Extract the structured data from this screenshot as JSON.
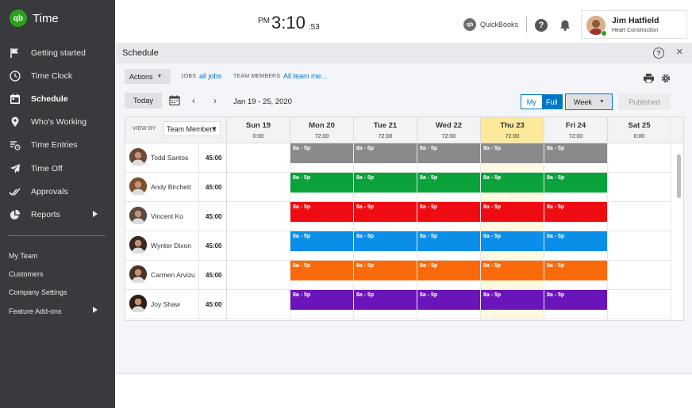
{
  "app": {
    "logo": "qb",
    "name": "Time"
  },
  "nav": {
    "items": [
      {
        "label": "Getting started",
        "icon": "flag-icon"
      },
      {
        "label": "Time Clock",
        "icon": "clock-icon"
      },
      {
        "label": "Schedule",
        "icon": "calendar-icon",
        "active": true
      },
      {
        "label": "Who's Working",
        "icon": "location-pin-icon"
      },
      {
        "label": "Time Entries",
        "icon": "time-entries-icon"
      },
      {
        "label": "Time Off",
        "icon": "airplane-icon"
      },
      {
        "label": "Approvals",
        "icon": "approvals-check-icon"
      },
      {
        "label": "Reports",
        "icon": "pie-chart-icon",
        "submenu": true
      }
    ],
    "sub_items": [
      {
        "label": "My Team"
      },
      {
        "label": "Customers"
      },
      {
        "label": "Company Settings"
      },
      {
        "label": "Feature Add-ons",
        "submenu": true
      }
    ]
  },
  "header": {
    "clock": {
      "ampm": "PM",
      "time": "3:10",
      "seconds": ":53"
    },
    "quickbooks_label": "QuickBooks",
    "quickbooks_logo": "qb",
    "help_label": "?",
    "user": {
      "name": "Jim Hatfield",
      "company": "Heart Construction"
    }
  },
  "schedule": {
    "title": "Schedule",
    "help_label": "?",
    "close_label": "×",
    "actions_label": "Actions",
    "jobs_label": "JOBS",
    "jobs_value": "all jobs",
    "team_label": "TEAM MEMBERS",
    "team_value": "All team me...",
    "today_label": "Today",
    "prev_label": "‹",
    "next_label": "›",
    "date_range": "Jan 19 - 25, 2020",
    "my_label": "My",
    "full_label": "Full",
    "week_label": "Week",
    "published_label": "Published",
    "view_by_label": "VIEW BY",
    "view_by_value": "Team Members",
    "days": [
      {
        "name": "Sun 19",
        "hours": "0:00",
        "today": false
      },
      {
        "name": "Mon 20",
        "hours": "72:00",
        "today": false
      },
      {
        "name": "Tue 21",
        "hours": "72:00",
        "today": false
      },
      {
        "name": "Wed 22",
        "hours": "72:00",
        "today": false
      },
      {
        "name": "Thu 23",
        "hours": "72:00",
        "today": true
      },
      {
        "name": "Fri 24",
        "hours": "72:00",
        "today": false
      },
      {
        "name": "Sat 25",
        "hours": "0:00",
        "today": false
      }
    ],
    "employees": [
      {
        "name": "Todd Santos",
        "hours": "45:00",
        "color": "#8a8a8a",
        "avatar": "#6b4a3a"
      },
      {
        "name": "Andy Birchett",
        "hours": "45:00",
        "color": "#0aa33b",
        "avatar": "#7a5230"
      },
      {
        "name": "Vincent Ko",
        "hours": "45:00",
        "color": "#ee0c12",
        "avatar": "#5a4a40"
      },
      {
        "name": "Wynter Dixon",
        "hours": "45:00",
        "color": "#0a8ee8",
        "avatar": "#3a2a22"
      },
      {
        "name": "Carmen Arvizu",
        "hours": "45:00",
        "color": "#fb6a0a",
        "avatar": "#4a3326"
      },
      {
        "name": "Joy Shaw",
        "hours": "45:00",
        "color": "#6a15ba",
        "avatar": "#2e2018"
      }
    ],
    "shift_label": "8a - 5p",
    "shift_days": [
      1,
      2,
      3,
      4,
      5
    ]
  }
}
